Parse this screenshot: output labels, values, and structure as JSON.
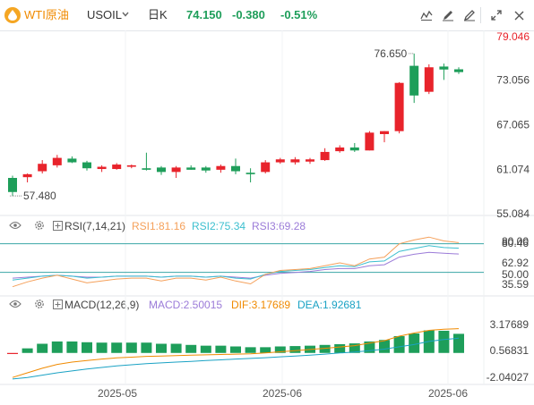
{
  "header": {
    "symbol_cn": "WTI原油",
    "symbol": "USOIL",
    "timeframe": "日K",
    "last_price": "74.150",
    "change": "-0.380",
    "change_pct": "-0.51%",
    "colors": {
      "up": "#e8232b",
      "down": "#1e9e5a",
      "accent": "#f08a00"
    }
  },
  "toolbar": {
    "icons": [
      "indicator-icon",
      "draw-icon",
      "pen-icon",
      "fullscreen-icon",
      "close-icon"
    ]
  },
  "price_axis": {
    "ticks": [
      "79.046",
      "73.056",
      "67.065",
      "61.074",
      "55.084"
    ],
    "top_tick_color": "#e8232b",
    "high_label": "76.650",
    "low_label": "57.480"
  },
  "rsi": {
    "title": "RSI(7,14,21)",
    "rsi1": "RSI1:81.16",
    "rsi2": "RSI2:75.34",
    "rsi3": "RSI3:69.28",
    "colors": {
      "rsi1": "#f5a05a",
      "rsi2": "#3bbfcf",
      "rsi3": "#9b7bd8"
    },
    "ticks": [
      "80.00",
      "80.46",
      "62.92",
      "50.00",
      "35.59"
    ]
  },
  "macd": {
    "title": "MACD(12,26,9)",
    "macd": "MACD:2.50015",
    "dif": "DIF:3.17689",
    "dea": "DEA:1.92681",
    "colors": {
      "macd": "#9b7bd8",
      "dif": "#f08a00",
      "dea": "#1aa2c4"
    },
    "ticks": [
      "3.17689",
      "0.56831",
      "-2.04027"
    ]
  },
  "time_axis": {
    "labels": [
      "2025-05",
      "2025-06",
      "2025-06"
    ]
  },
  "chart_data": {
    "type": "candlestick",
    "price_range": [
      55.084,
      79.046
    ],
    "candles": [
      {
        "o": 59.9,
        "h": 60.2,
        "l": 57.48,
        "c": 58.0
      },
      {
        "o": 60.0,
        "h": 60.5,
        "l": 59.3,
        "c": 60.4
      },
      {
        "o": 60.8,
        "h": 62.3,
        "l": 60.5,
        "c": 61.8
      },
      {
        "o": 61.6,
        "h": 63.0,
        "l": 61.3,
        "c": 62.6
      },
      {
        "o": 62.5,
        "h": 62.8,
        "l": 61.9,
        "c": 62.0
      },
      {
        "o": 62.0,
        "h": 62.2,
        "l": 60.9,
        "c": 61.2
      },
      {
        "o": 61.1,
        "h": 61.6,
        "l": 60.7,
        "c": 61.4
      },
      {
        "o": 61.1,
        "h": 61.9,
        "l": 61.0,
        "c": 61.7
      },
      {
        "o": 61.4,
        "h": 61.7,
        "l": 61.2,
        "c": 61.6
      },
      {
        "o": 61.2,
        "h": 63.3,
        "l": 60.9,
        "c": 61.0
      },
      {
        "o": 61.3,
        "h": 61.5,
        "l": 60.3,
        "c": 60.7
      },
      {
        "o": 60.7,
        "h": 61.5,
        "l": 59.9,
        "c": 61.3
      },
      {
        "o": 61.3,
        "h": 61.6,
        "l": 61.0,
        "c": 61.0
      },
      {
        "o": 61.3,
        "h": 61.5,
        "l": 60.6,
        "c": 60.9
      },
      {
        "o": 61.0,
        "h": 61.7,
        "l": 60.6,
        "c": 61.5
      },
      {
        "o": 61.5,
        "h": 62.5,
        "l": 60.4,
        "c": 60.8
      },
      {
        "o": 60.6,
        "h": 61.2,
        "l": 59.3,
        "c": 60.4
      },
      {
        "o": 60.7,
        "h": 62.3,
        "l": 60.5,
        "c": 62.0
      },
      {
        "o": 62.0,
        "h": 62.6,
        "l": 61.8,
        "c": 62.4
      },
      {
        "o": 62.0,
        "h": 62.7,
        "l": 61.7,
        "c": 62.4
      },
      {
        "o": 62.1,
        "h": 62.6,
        "l": 61.8,
        "c": 62.4
      },
      {
        "o": 62.3,
        "h": 63.9,
        "l": 62.2,
        "c": 63.4
      },
      {
        "o": 63.5,
        "h": 64.3,
        "l": 63.3,
        "c": 64.0
      },
      {
        "o": 64.0,
        "h": 64.6,
        "l": 63.4,
        "c": 63.6
      },
      {
        "o": 63.6,
        "h": 66.2,
        "l": 63.6,
        "c": 66.0
      },
      {
        "o": 65.8,
        "h": 66.2,
        "l": 64.7,
        "c": 66.2
      },
      {
        "o": 66.2,
        "h": 72.8,
        "l": 65.9,
        "c": 72.7
      },
      {
        "o": 75.0,
        "h": 76.65,
        "l": 70.0,
        "c": 71.0
      },
      {
        "o": 71.5,
        "h": 75.2,
        "l": 71.2,
        "c": 74.8
      },
      {
        "o": 74.9,
        "h": 75.3,
        "l": 73.1,
        "c": 74.5
      },
      {
        "o": 74.53,
        "h": 74.8,
        "l": 73.9,
        "c": 74.15
      }
    ],
    "rsi_range": [
      30,
      90
    ],
    "rsi1": [
      35,
      40,
      44,
      47,
      43,
      39,
      41,
      43,
      44,
      44,
      41,
      44,
      44,
      42,
      45,
      41,
      38,
      48,
      52,
      53,
      54,
      57,
      60,
      57,
      64,
      66,
      80,
      84,
      87,
      83,
      81.16
    ],
    "rsi2": [
      42,
      44,
      46,
      47,
      46,
      44,
      45,
      46,
      46,
      46,
      45,
      46,
      46,
      45,
      46,
      44,
      43,
      48,
      51,
      52,
      53,
      55,
      57,
      56,
      61,
      62,
      72,
      75,
      78,
      76,
      75.34
    ],
    "rsi3": [
      44,
      45,
      46,
      47,
      46,
      45,
      45,
      46,
      46,
      46,
      45,
      46,
      46,
      45,
      46,
      45,
      44,
      47,
      49,
      50,
      51,
      53,
      54,
      54,
      57,
      58,
      66,
      69,
      71,
      70,
      69.28
    ],
    "macd_range": [
      -4.0,
      5.0
    ],
    "macd_hist": [
      0.0,
      0.6,
      1.2,
      1.5,
      1.5,
      1.4,
      1.35,
      1.35,
      1.35,
      1.35,
      1.2,
      1.2,
      1.05,
      0.95,
      0.95,
      0.85,
      0.75,
      0.75,
      0.85,
      0.9,
      0.95,
      1.05,
      1.15,
      1.25,
      1.5,
      1.7,
      2.2,
      2.55,
      2.95,
      2.9,
      2.50015
    ],
    "macd_dif": [
      -3.2,
      -2.6,
      -2.0,
      -1.5,
      -1.2,
      -1.0,
      -0.8,
      -0.65,
      -0.55,
      -0.45,
      -0.4,
      -0.35,
      -0.3,
      -0.25,
      -0.2,
      -0.15,
      -0.12,
      0.0,
      0.15,
      0.3,
      0.45,
      0.6,
      0.78,
      0.95,
      1.3,
      1.6,
      2.2,
      2.6,
      2.95,
      3.1,
      3.17689
    ],
    "macd_dea": [
      -3.4,
      -3.2,
      -2.9,
      -2.6,
      -2.35,
      -2.1,
      -1.9,
      -1.7,
      -1.55,
      -1.4,
      -1.3,
      -1.2,
      -1.1,
      -1.0,
      -0.9,
      -0.8,
      -0.72,
      -0.62,
      -0.5,
      -0.4,
      -0.28,
      -0.15,
      0.0,
      0.12,
      0.3,
      0.5,
      0.8,
      1.1,
      1.5,
      1.75,
      1.92681
    ]
  }
}
